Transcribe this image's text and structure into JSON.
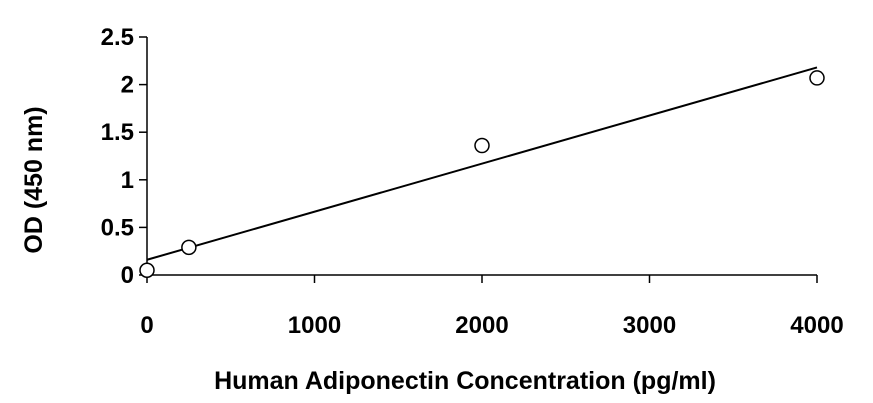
{
  "chart_data": {
    "type": "scatter",
    "title": "",
    "xlabel": "Human Adiponectin Concentration (pg/ml)",
    "ylabel": "OD (450 nm)",
    "xlim": [
      0,
      4000
    ],
    "ylim": [
      0,
      2.5
    ],
    "x_ticks": [
      "0",
      "1000",
      "2000",
      "3000",
      "4000"
    ],
    "y_ticks": [
      "0",
      "0.5",
      "1",
      "1.5",
      "2",
      "2.5"
    ],
    "grid": false,
    "legend": "none",
    "points": [
      {
        "x": 0,
        "y": 0.05
      },
      {
        "x": 250,
        "y": 0.29
      },
      {
        "x": 2000,
        "y": 1.36
      },
      {
        "x": 4000,
        "y": 2.07
      }
    ],
    "trendline": {
      "type": "linear",
      "from": {
        "x": 0,
        "y": 0.16
      },
      "to": {
        "x": 4000,
        "y": 2.18
      }
    },
    "colors": {
      "axis": "#000000",
      "marker_fill": "#ffffff",
      "marker_stroke": "#000000",
      "line": "#000000"
    }
  }
}
